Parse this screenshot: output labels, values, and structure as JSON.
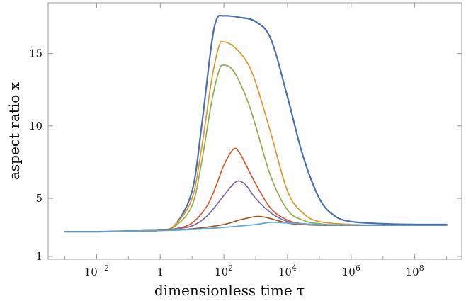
{
  "chart_data": {
    "type": "line",
    "title": "",
    "xlabel": "dimensionless time τ",
    "ylabel": "aspect ratio x",
    "x_scale": "log10",
    "xlim": [
      0.0003,
      3000000000
    ],
    "ylim": [
      0.8,
      18.5
    ],
    "grid": false,
    "legend": "none",
    "x_ticks": [
      {
        "value": 0.01,
        "label": "10−2"
      },
      {
        "value": 1,
        "label": "1"
      },
      {
        "value": 100,
        "label": "102"
      },
      {
        "value": 10000,
        "label": "104"
      },
      {
        "value": 1000000,
        "label": "106"
      },
      {
        "value": 100000000,
        "label": "108"
      }
    ],
    "y_ticks": [
      {
        "value": 1,
        "label": "1"
      },
      {
        "value": 5,
        "label": "5"
      },
      {
        "value": 10,
        "label": "10"
      },
      {
        "value": 15,
        "label": "15"
      }
    ],
    "series": [
      {
        "color": "#4a6fb5",
        "x": [
          0.001,
          0.01,
          0.1,
          1,
          3,
          10,
          20,
          40,
          60,
          100,
          300,
          1000,
          3000,
          10000,
          30000,
          100000,
          300000,
          1000000,
          10000000,
          100000000,
          1000000000
        ],
        "y": [
          2.7,
          2.7,
          2.75,
          2.8,
          3.2,
          5.5,
          10.0,
          15.5,
          17.4,
          17.6,
          17.5,
          17.2,
          16.0,
          12.0,
          8.0,
          5.0,
          3.8,
          3.4,
          3.25,
          3.2,
          3.2
        ]
      },
      {
        "color": "#e0962a",
        "x": [
          0.001,
          0.01,
          0.1,
          1,
          3,
          10,
          20,
          40,
          70,
          100,
          200,
          500,
          1000,
          3000,
          10000,
          30000,
          100000,
          1000000,
          10000000,
          1000000000
        ],
        "y": [
          2.7,
          2.7,
          2.75,
          2.8,
          3.2,
          5.0,
          8.5,
          13.0,
          15.5,
          15.8,
          15.5,
          14.5,
          13.0,
          9.5,
          5.5,
          4.0,
          3.4,
          3.2,
          3.15,
          3.15
        ]
      },
      {
        "color": "#8cb04a",
        "x": [
          0.001,
          0.01,
          0.1,
          1,
          3,
          10,
          20,
          40,
          70,
          100,
          200,
          500,
          1000,
          3000,
          10000,
          30000,
          100000,
          1000000,
          1000000000
        ],
        "y": [
          2.7,
          2.7,
          2.75,
          2.8,
          3.1,
          4.5,
          7.5,
          11.5,
          13.8,
          14.2,
          13.8,
          12.0,
          10.0,
          6.5,
          4.2,
          3.5,
          3.25,
          3.15,
          3.15
        ]
      },
      {
        "color": "#d8592f",
        "x": [
          0.001,
          0.01,
          0.1,
          1,
          3,
          10,
          30,
          60,
          100,
          200,
          300,
          500,
          1000,
          3000,
          10000,
          30000,
          100000,
          1000000,
          1000000000
        ],
        "y": [
          2.7,
          2.7,
          2.75,
          2.8,
          2.9,
          3.3,
          4.5,
          6.0,
          7.3,
          8.4,
          8.2,
          7.3,
          6.0,
          4.3,
          3.5,
          3.25,
          3.18,
          3.15,
          3.15
        ]
      },
      {
        "color": "#7d68ad",
        "x": [
          0.001,
          0.01,
          0.1,
          1,
          3,
          10,
          30,
          100,
          200,
          300,
          500,
          1000,
          3000,
          10000,
          30000,
          100000,
          1000000,
          1000000000
        ],
        "y": [
          2.7,
          2.7,
          2.75,
          2.8,
          2.9,
          3.1,
          3.8,
          5.2,
          6.0,
          6.2,
          5.9,
          5.0,
          4.0,
          3.4,
          3.25,
          3.18,
          3.15,
          3.15
        ]
      },
      {
        "color": "#9e5523",
        "x": [
          0.001,
          0.01,
          0.1,
          1,
          10,
          100,
          300,
          1000,
          2000,
          3000,
          10000,
          30000,
          100000,
          1000000,
          1000000000
        ],
        "y": [
          2.7,
          2.7,
          2.75,
          2.8,
          2.9,
          3.2,
          3.5,
          3.75,
          3.7,
          3.6,
          3.3,
          3.2,
          3.15,
          3.15,
          3.15
        ]
      },
      {
        "color": "#5aa8dd",
        "x": [
          0.001,
          0.01,
          0.1,
          1,
          10,
          100,
          1000,
          3000,
          10000,
          100000,
          1000000,
          1000000000
        ],
        "y": [
          2.7,
          2.7,
          2.75,
          2.78,
          2.85,
          3.0,
          3.2,
          3.35,
          3.3,
          3.2,
          3.15,
          3.15
        ]
      }
    ]
  }
}
